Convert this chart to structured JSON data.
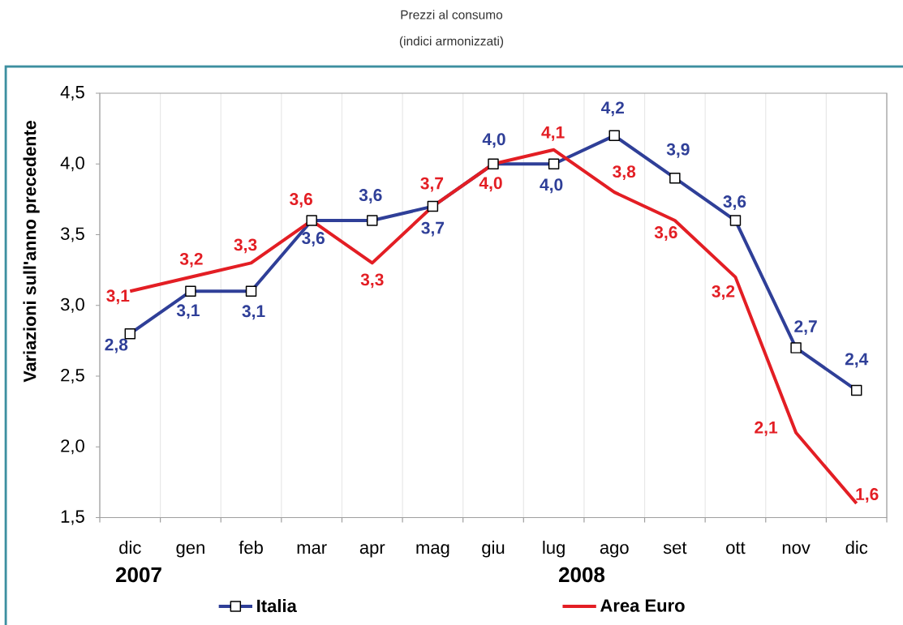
{
  "chart_data": {
    "type": "line",
    "title": "Prezzi al consumo",
    "subtitle": "(indici armonizzati)",
    "ylabel": "Variazioni sull'anno precedente",
    "categories": [
      "dic",
      "gen",
      "feb",
      "mar",
      "apr",
      "mag",
      "giu",
      "lug",
      "ago",
      "set",
      "ott",
      "nov",
      "dic"
    ],
    "series": [
      {
        "name": "Italia",
        "color": "#2f3f98",
        "marker": "square",
        "values": [
          2.8,
          3.1,
          3.1,
          3.6,
          3.6,
          3.7,
          4.0,
          4.0,
          4.2,
          3.9,
          3.6,
          2.7,
          2.4
        ],
        "value_labels": [
          "2,8",
          "3,1",
          "3,1",
          "3,6",
          "3,6",
          "3,7",
          "4,0",
          "4,0",
          "4,2",
          "3,9",
          "3,6",
          "2,7",
          "2,4"
        ]
      },
      {
        "name": "Area Euro",
        "color": "#e31e24",
        "marker": "none",
        "values": [
          3.1,
          3.2,
          3.3,
          3.6,
          3.3,
          3.7,
          4.0,
          4.1,
          3.8,
          3.6,
          3.2,
          2.1,
          1.6
        ],
        "value_labels": [
          "3,1",
          "3,2",
          "3,3",
          "3,6",
          "3,3",
          "3,7",
          "4,0",
          "4,1",
          "3,8",
          "3,6",
          "3,2",
          "2,1",
          "1,6"
        ]
      }
    ],
    "ylim": [
      1.5,
      4.5
    ],
    "yticks": [
      {
        "value": 1.5,
        "label": "1,5"
      },
      {
        "value": 2.0,
        "label": "2,0"
      },
      {
        "value": 2.5,
        "label": "2,5"
      },
      {
        "value": 3.0,
        "label": "3,0"
      },
      {
        "value": 3.5,
        "label": "3,5"
      },
      {
        "value": 4.0,
        "label": "4,0"
      },
      {
        "value": 4.5,
        "label": "4,5"
      }
    ],
    "grid": "x",
    "legend": "bottom",
    "line_style": "solid",
    "annotations": [
      "2007",
      "2008"
    ]
  }
}
